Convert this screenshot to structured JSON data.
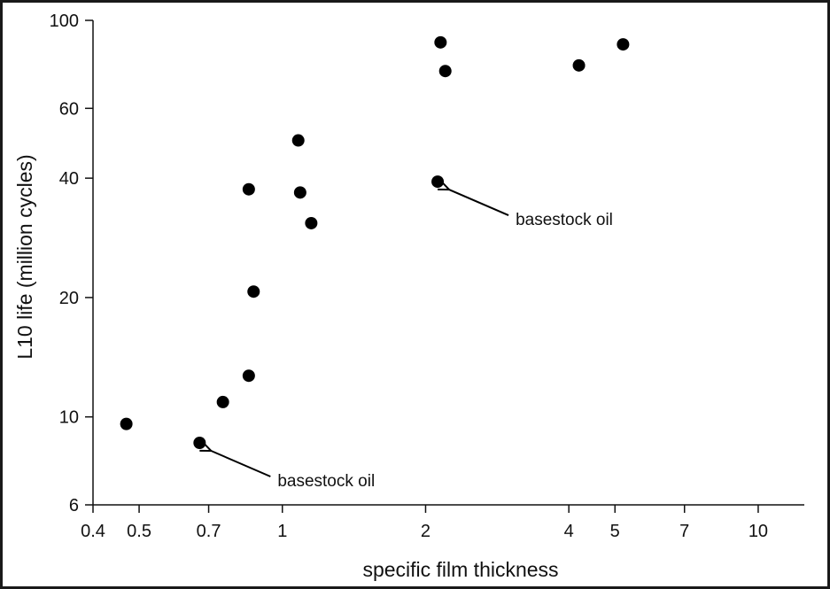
{
  "chart_data": {
    "type": "scatter",
    "xlabel": "specific film thickness",
    "ylabel": "L10 life (million cycles)",
    "x_scale": "log",
    "y_scale": "log",
    "xlim": [
      0.4,
      12.5
    ],
    "ylim": [
      6,
      100
    ],
    "x_ticks": [
      0.4,
      0.5,
      0.7,
      1,
      2,
      4,
      5,
      7,
      10
    ],
    "x_tick_labels": [
      "0.4",
      "0.5",
      "0.7",
      "1",
      "2",
      "4",
      "5",
      "7",
      "10"
    ],
    "y_ticks": [
      6,
      10,
      20,
      40,
      60,
      100
    ],
    "y_tick_labels": [
      "6",
      "10",
      "20",
      "40",
      "60",
      "100"
    ],
    "grid": false,
    "legend": "none",
    "marker_color": "#000000",
    "series": [
      {
        "points": [
          {
            "x": 0.47,
            "y": 9.6
          },
          {
            "x": 0.67,
            "y": 8.6
          },
          {
            "x": 0.75,
            "y": 10.9
          },
          {
            "x": 0.85,
            "y": 12.7
          },
          {
            "x": 0.87,
            "y": 20.7
          },
          {
            "x": 0.85,
            "y": 37.5
          },
          {
            "x": 1.09,
            "y": 36.8
          },
          {
            "x": 1.08,
            "y": 49.8
          },
          {
            "x": 1.15,
            "y": 30.8
          },
          {
            "x": 2.12,
            "y": 39.2
          },
          {
            "x": 2.15,
            "y": 88.0
          },
          {
            "x": 2.2,
            "y": 74.5
          },
          {
            "x": 4.2,
            "y": 77.0
          },
          {
            "x": 5.2,
            "y": 87.0
          }
        ]
      }
    ],
    "annotations": [
      {
        "text": "basestock oil",
        "target": {
          "x": 0.67,
          "y": 8.6
        }
      },
      {
        "text": "basestock oil",
        "target": {
          "x": 2.12,
          "y": 39.2
        }
      }
    ]
  }
}
